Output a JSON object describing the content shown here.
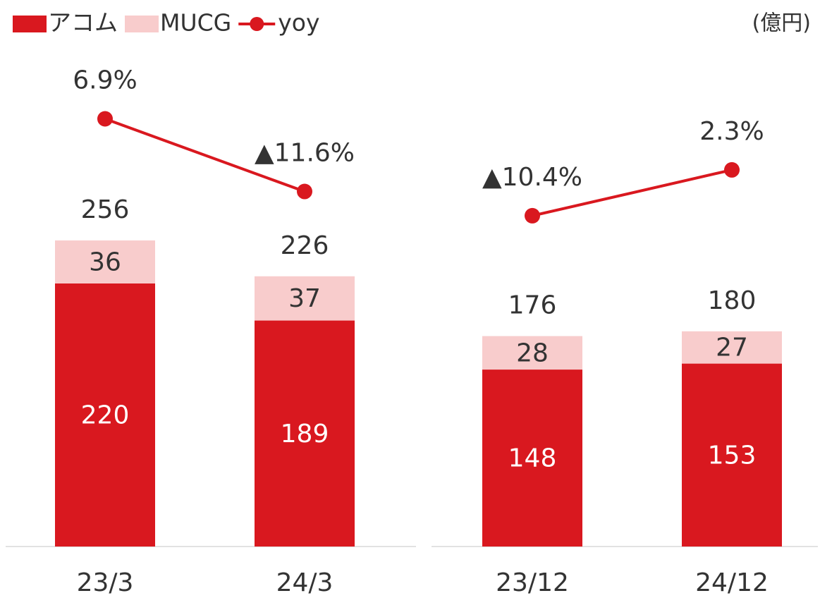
{
  "unit": "(億円)",
  "chart_data": [
    {
      "type": "bar",
      "categories": [
        "23/3",
        "24/3"
      ],
      "series": [
        {
          "name": "アコム",
          "color": "#d9181f",
          "values": [
            220,
            189
          ]
        },
        {
          "name": "MUCG",
          "color": "#f8cccc",
          "values": [
            36,
            37
          ]
        },
        {
          "name": "yoy",
          "type": "line",
          "axis": "y2",
          "color": "#d9181f",
          "values": [
            6.9,
            -11.6
          ],
          "value_labels": [
            "6.9%",
            "▲11.6%"
          ]
        }
      ],
      "totals": [
        256,
        226
      ],
      "ylim": [
        0,
        450
      ],
      "y2lim": [
        -102,
        35
      ]
    },
    {
      "type": "bar",
      "categories": [
        "23/12",
        "24/12"
      ],
      "series": [
        {
          "color": "#d9181f",
          "values": [
            148,
            153
          ]
        },
        {
          "color": "#f8cccc",
          "values": [
            28,
            27
          ]
        },
        {
          "type": "line",
          "axis": "y2",
          "color": "#d9181f",
          "values": [
            -10.4,
            2.3
          ],
          "value_labels": [
            "▲10.4%",
            "2.3%"
          ]
        }
      ],
      "totals": [
        176,
        180
      ],
      "ylim": [
        0,
        450
      ],
      "y2lim": [
        -102,
        47
      ]
    }
  ]
}
